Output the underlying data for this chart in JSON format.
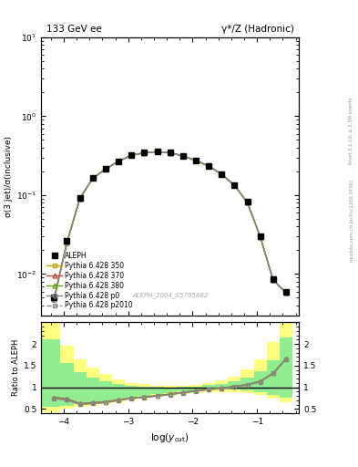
{
  "title_left": "133 GeV ee",
  "title_right": "γ*/Z (Hadronic)",
  "ylabel_main": "σ(3 jet)/σ(inclusive)",
  "ylabel_ratio": "Ratio to ALEPH",
  "xlabel": "log(y_{cut})",
  "watermark": "ALEPH_2004_S5765862",
  "rivet_text": "Rivet 3.1.10; ≥ 3.3M events",
  "arxiv_text": "[arXiv:1306.3436]",
  "mcplots_text": "mcplots.cern.ch",
  "xdata": [
    -4.15,
    -3.95,
    -3.75,
    -3.55,
    -3.35,
    -3.15,
    -2.95,
    -2.75,
    -2.55,
    -2.35,
    -2.15,
    -1.95,
    -1.75,
    -1.55,
    -1.35,
    -1.15,
    -0.95,
    -0.75,
    -0.55
  ],
  "aleph_y": [
    0.005,
    0.026,
    0.092,
    0.165,
    0.215,
    0.27,
    0.32,
    0.345,
    0.355,
    0.345,
    0.315,
    0.275,
    0.235,
    0.185,
    0.135,
    0.082,
    0.03,
    0.0085,
    0.006
  ],
  "mc_y": [
    0.0048,
    0.025,
    0.09,
    0.163,
    0.213,
    0.268,
    0.318,
    0.343,
    0.353,
    0.343,
    0.313,
    0.273,
    0.233,
    0.183,
    0.133,
    0.08,
    0.0295,
    0.0083,
    0.0058
  ],
  "ratio_main": [
    0.74,
    0.715,
    0.61,
    0.63,
    0.65,
    0.7,
    0.745,
    0.77,
    0.8,
    0.835,
    0.875,
    0.915,
    0.95,
    0.975,
    1.01,
    1.055,
    1.13,
    1.32,
    1.65
  ],
  "ratio_370": [
    0.77,
    0.735,
    0.625,
    0.645,
    0.665,
    0.715,
    0.755,
    0.78,
    0.81,
    0.845,
    0.885,
    0.925,
    0.96,
    0.985,
    1.02,
    1.065,
    1.14,
    1.33,
    1.66
  ],
  "ratio_380": [
    0.755,
    0.725,
    0.615,
    0.635,
    0.655,
    0.705,
    0.75,
    0.775,
    0.805,
    0.84,
    0.88,
    0.92,
    0.955,
    0.98,
    1.015,
    1.06,
    1.135,
    1.325,
    1.655
  ],
  "ratio_p0": [
    0.74,
    0.712,
    0.608,
    0.628,
    0.648,
    0.698,
    0.743,
    0.768,
    0.798,
    0.833,
    0.873,
    0.913,
    0.948,
    0.973,
    1.008,
    1.053,
    1.128,
    1.318,
    1.648
  ],
  "ratio_p2010": [
    0.74,
    0.712,
    0.608,
    0.628,
    0.648,
    0.698,
    0.743,
    0.768,
    0.798,
    0.833,
    0.873,
    0.913,
    0.948,
    0.973,
    1.008,
    1.053,
    1.128,
    1.318,
    1.648
  ],
  "band_edges": [
    -4.35,
    -4.05,
    -3.85,
    -3.65,
    -3.45,
    -3.25,
    -3.05,
    -2.85,
    -2.65,
    -2.45,
    -2.25,
    -2.05,
    -1.85,
    -1.65,
    -1.45,
    -1.25,
    -1.05,
    -0.85,
    -0.65,
    -0.45
  ],
  "green_lo": [
    0.55,
    0.58,
    0.62,
    0.65,
    0.68,
    0.72,
    0.76,
    0.8,
    0.84,
    0.87,
    0.9,
    0.92,
    0.94,
    0.95,
    0.94,
    0.92,
    0.88,
    0.82,
    0.75
  ],
  "green_hi": [
    2.1,
    1.55,
    1.35,
    1.22,
    1.14,
    1.08,
    1.04,
    1.02,
    1.01,
    1.0,
    1.01,
    1.02,
    1.05,
    1.08,
    1.14,
    1.22,
    1.37,
    1.62,
    2.15
  ],
  "yellow_lo": [
    0.42,
    0.5,
    0.55,
    0.58,
    0.62,
    0.66,
    0.7,
    0.74,
    0.78,
    0.81,
    0.84,
    0.86,
    0.88,
    0.89,
    0.88,
    0.86,
    0.82,
    0.74,
    0.65
  ],
  "yellow_hi": [
    2.5,
    1.95,
    1.65,
    1.45,
    1.3,
    1.18,
    1.1,
    1.07,
    1.04,
    1.03,
    1.03,
    1.05,
    1.09,
    1.15,
    1.25,
    1.42,
    1.65,
    2.05,
    2.55
  ],
  "color_350": "#b8a800",
  "color_370": "#cc4444",
  "color_380": "#60a020",
  "color_p0": "#888888",
  "color_p2010": "#888888",
  "xlim": [
    -4.35,
    -0.35
  ],
  "ylim_main": [
    0.003,
    10
  ],
  "ylim_ratio": [
    0.4,
    2.5
  ],
  "ratio_yticks": [
    0.5,
    1.0,
    1.5,
    2.0
  ],
  "ratio_ylim": [
    0.4,
    2.5
  ]
}
